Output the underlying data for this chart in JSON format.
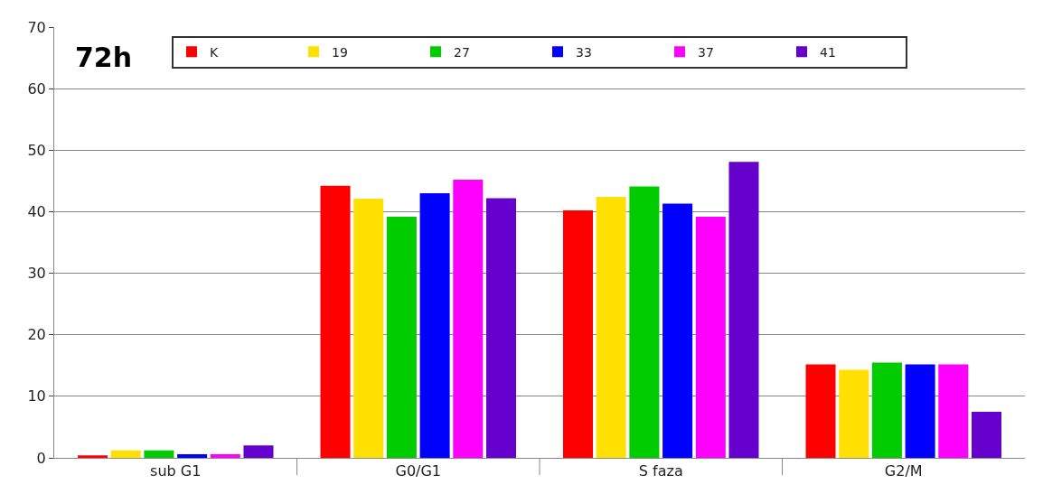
{
  "chart_data": {
    "type": "bar",
    "annotations": [
      "72h"
    ],
    "categories": [
      "sub G1",
      "G0/G1",
      "S faza",
      "G2/M"
    ],
    "series": [
      {
        "name": "K",
        "color": "#ff0000",
        "values": [
          0.4,
          44.2,
          40.2,
          15.2
        ]
      },
      {
        "name": "19",
        "color": "#ffe000",
        "values": [
          1.2,
          42.1,
          42.4,
          14.3
        ]
      },
      {
        "name": "27",
        "color": "#00cc00",
        "values": [
          1.2,
          39.2,
          44.1,
          15.5
        ]
      },
      {
        "name": "33",
        "color": "#0000ff",
        "values": [
          0.6,
          43.0,
          41.3,
          15.2
        ]
      },
      {
        "name": "37",
        "color": "#ff00ff",
        "values": [
          0.6,
          45.2,
          39.2,
          15.2
        ]
      },
      {
        "name": "41",
        "color": "#6600cc",
        "values": [
          2.0,
          42.2,
          48.1,
          7.5
        ]
      }
    ],
    "ylim": [
      0,
      70
    ],
    "yticks": [
      0,
      10,
      20,
      30,
      40,
      50,
      60,
      70
    ],
    "grid": "y",
    "legend": "top"
  }
}
